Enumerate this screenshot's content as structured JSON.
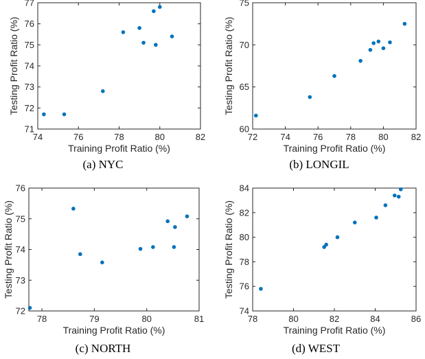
{
  "chart_data": [
    {
      "type": "scatter",
      "caption": "(a)  NYC",
      "xlabel": "Training Profit Ratio (%)",
      "ylabel": "Testing Profit Ratio (%)",
      "xlim": [
        74,
        82
      ],
      "ylim": [
        71,
        77
      ],
      "xticks": [
        74,
        76,
        78,
        80,
        82
      ],
      "yticks": [
        71,
        72,
        73,
        74,
        75,
        76,
        77
      ],
      "grid": false,
      "marker_color": "#0072BD",
      "points": [
        {
          "x": 74.3,
          "y": 71.7
        },
        {
          "x": 75.3,
          "y": 71.7
        },
        {
          "x": 77.2,
          "y": 72.8
        },
        {
          "x": 78.2,
          "y": 75.6
        },
        {
          "x": 79.0,
          "y": 75.8
        },
        {
          "x": 79.2,
          "y": 75.1
        },
        {
          "x": 79.7,
          "y": 76.6
        },
        {
          "x": 79.8,
          "y": 75.0
        },
        {
          "x": 80.0,
          "y": 76.8
        },
        {
          "x": 80.6,
          "y": 75.4
        }
      ]
    },
    {
      "type": "scatter",
      "caption": "(b)  LONGIL",
      "xlabel": "Training Profit Ratio (%)",
      "ylabel": "Testing Profit Ratio (%)",
      "xlim": [
        72,
        82
      ],
      "ylim": [
        60,
        75
      ],
      "xticks": [
        72,
        74,
        76,
        78,
        80,
        82
      ],
      "yticks": [
        60,
        65,
        70,
        75
      ],
      "grid": false,
      "marker_color": "#0072BD",
      "points": [
        {
          "x": 72.2,
          "y": 61.6
        },
        {
          "x": 75.5,
          "y": 63.8
        },
        {
          "x": 77.0,
          "y": 66.3
        },
        {
          "x": 78.6,
          "y": 68.1
        },
        {
          "x": 79.2,
          "y": 69.4
        },
        {
          "x": 79.4,
          "y": 70.2
        },
        {
          "x": 79.7,
          "y": 70.4
        },
        {
          "x": 80.0,
          "y": 69.6
        },
        {
          "x": 80.4,
          "y": 70.3
        },
        {
          "x": 81.3,
          "y": 72.5
        }
      ]
    },
    {
      "type": "scatter",
      "caption": "(c)  NORTH",
      "xlabel": "Training Profit Ratio (%)",
      "ylabel": "Testing Profit Ratio (%)",
      "xlim": [
        77.75,
        81
      ],
      "ylim": [
        72,
        76
      ],
      "xticks": [
        78,
        79,
        80,
        81
      ],
      "yticks": [
        72,
        73,
        74,
        75,
        76
      ],
      "grid": false,
      "marker_color": "#0072BD",
      "points": [
        {
          "x": 77.77,
          "y": 72.1
        },
        {
          "x": 78.6,
          "y": 75.33
        },
        {
          "x": 78.73,
          "y": 73.85
        },
        {
          "x": 79.15,
          "y": 73.58
        },
        {
          "x": 79.88,
          "y": 74.02
        },
        {
          "x": 80.12,
          "y": 74.08
        },
        {
          "x": 80.4,
          "y": 74.92
        },
        {
          "x": 80.52,
          "y": 74.08
        },
        {
          "x": 80.54,
          "y": 74.73
        },
        {
          "x": 80.77,
          "y": 75.08
        }
      ]
    },
    {
      "type": "scatter",
      "caption": "(d)  WEST",
      "xlabel": "Training Profit Ratio (%)",
      "ylabel": "Testing Profit Ratio (%)",
      "xlim": [
        78,
        86
      ],
      "ylim": [
        74,
        84
      ],
      "xticks": [
        78,
        80,
        82,
        84,
        86
      ],
      "yticks": [
        74,
        76,
        78,
        80,
        82,
        84
      ],
      "grid": false,
      "marker_color": "#0072BD",
      "points": [
        {
          "x": 78.4,
          "y": 75.8
        },
        {
          "x": 81.5,
          "y": 79.2
        },
        {
          "x": 81.6,
          "y": 79.4
        },
        {
          "x": 82.15,
          "y": 80.0
        },
        {
          "x": 83.0,
          "y": 81.2
        },
        {
          "x": 84.05,
          "y": 81.6
        },
        {
          "x": 84.5,
          "y": 82.6
        },
        {
          "x": 84.95,
          "y": 83.4
        },
        {
          "x": 85.15,
          "y": 83.3
        },
        {
          "x": 85.25,
          "y": 83.9
        }
      ]
    }
  ]
}
